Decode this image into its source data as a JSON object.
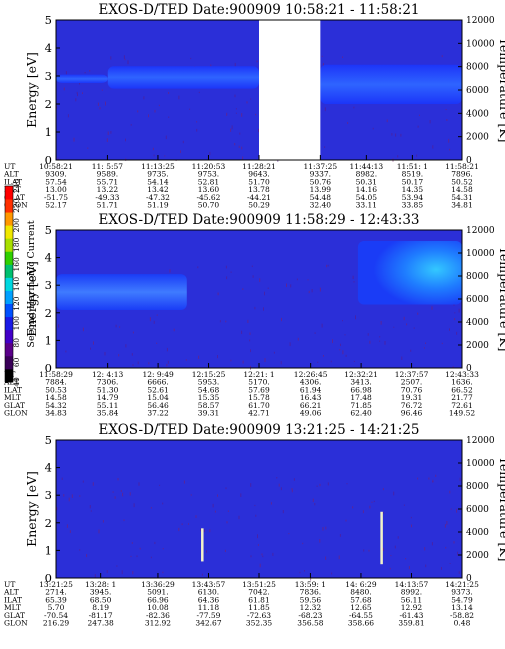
{
  "chart_data": [
    {
      "type": "heatmap",
      "title": "EXOS-D/TED   Date:900909   10:58:21 - 11:58:21",
      "ylabel": "Energy [eV]",
      "ylabel_right": "Temperature [K]",
      "ylim": [
        0,
        5
      ],
      "y_ticks": [
        0,
        1,
        2,
        3,
        4,
        5
      ],
      "ylim_right": [
        0,
        12000
      ],
      "y_ticks_right": [
        0,
        2000,
        4000,
        6000,
        8000,
        10000,
        12000
      ],
      "time_range": [
        "10:58:21",
        "11:58:21"
      ],
      "data_gap": [
        "11:28:21",
        "11:37:25"
      ],
      "spectrogram_bands": [
        {
          "from": "10:58:21",
          "to": "11:06:00",
          "energy": [
            2.75,
            3.05
          ],
          "level": "light-blue"
        },
        {
          "from": "11:06:00",
          "to": "11:28:21",
          "energy": [
            2.55,
            3.35
          ],
          "level": "light-blue"
        },
        {
          "from": "11:37:25",
          "to": "11:58:21",
          "energy": [
            2.0,
            3.4
          ],
          "level": "light-blue"
        }
      ],
      "annotation_rows": [
        {
          "label": "UT",
          "values": [
            "10:58:21",
            "11: 5:57",
            "11:13:25",
            "11:20:53",
            "11:28:21",
            "11:37:25",
            "11:44:13",
            "11:51: 1",
            "11:58:21"
          ]
        },
        {
          "label": "ALT",
          "values": [
            "9309.",
            "9589.",
            "9735.",
            "9753.",
            "9643.",
            "9337.",
            "8982.",
            "8519.",
            "7896."
          ]
        },
        {
          "label": "ILAT",
          "values": [
            "57.54",
            "55.71",
            "54.14",
            "52.81",
            "51.70",
            "50.76",
            "50.31",
            "50.17",
            "50.52"
          ]
        },
        {
          "label": "MLT",
          "values": [
            "13.00",
            "13.22",
            "13.42",
            "13.60",
            "13.78",
            "13.99",
            "14.16",
            "14.35",
            "14.58"
          ]
        },
        {
          "label": "GLAT",
          "values": [
            "-51.75",
            "-49.33",
            "-47.32",
            "-45.62",
            "-44.21",
            "54.48",
            "54.05",
            "53.94",
            "54.31"
          ]
        },
        {
          "label": "GLON",
          "values": [
            "52.17",
            "51.71",
            "51.19",
            "50.70",
            "50.29",
            "32.40",
            "33.11",
            "33.85",
            "34.81"
          ]
        }
      ]
    },
    {
      "type": "heatmap",
      "title": "EXOS-D/TED   Date:900909   11:58:29 - 12:43:33",
      "ylabel": "Energy [eV]",
      "ylabel_right": "Temperature [K]",
      "ylim": [
        0,
        5
      ],
      "y_ticks": [
        0,
        1,
        2,
        3,
        4,
        5
      ],
      "ylim_right": [
        0,
        12000
      ],
      "y_ticks_right": [
        0,
        2000,
        4000,
        6000,
        8000,
        10000,
        12000
      ],
      "time_range": [
        "11:58:29",
        "12:43:33"
      ],
      "spectrogram_bands": [
        {
          "from": "11:58:29",
          "to": "12:13:00",
          "energy": [
            2.1,
            3.4
          ],
          "level": "light-blue"
        },
        {
          "from": "12:32:00",
          "to": "12:43:33",
          "energy": [
            2.3,
            4.6
          ],
          "level": "light-blue-to-cyan"
        }
      ],
      "annotation_rows": [
        {
          "label": "UT",
          "values": [
            "11:58:29",
            "12: 4:13",
            "12: 9:49",
            "12:15:25",
            "12:21: 1",
            "12:26:45",
            "12:32:21",
            "12:37:57",
            "12:43:33"
          ]
        },
        {
          "label": "ALT",
          "values": [
            "7884.",
            "7306.",
            "6666.",
            "5953.",
            "5170.",
            "4306.",
            "3413.",
            "2507.",
            "1636."
          ]
        },
        {
          "label": "ILAT",
          "values": [
            "50.53",
            "51.30",
            "52.61",
            "54.68",
            "57.69",
            "61.94",
            "66.98",
            "70.76",
            "66.52"
          ]
        },
        {
          "label": "MLT",
          "values": [
            "14.58",
            "14.79",
            "15.04",
            "15.35",
            "15.78",
            "16.43",
            "17.48",
            "19.31",
            "21.77"
          ]
        },
        {
          "label": "GLAT",
          "values": [
            "54.32",
            "55.11",
            "56.46",
            "58.57",
            "61.70",
            "66.21",
            "71.85",
            "76.72",
            "72.61"
          ]
        },
        {
          "label": "GLON",
          "values": [
            "34.83",
            "35.84",
            "37.22",
            "39.31",
            "42.71",
            "49.06",
            "62.40",
            "96.46",
            "149.52"
          ]
        }
      ]
    },
    {
      "type": "heatmap",
      "title": "EXOS-D/TED   Date:900909   13:21:25 - 14:21:25",
      "ylabel": "Energy [eV]",
      "ylabel_right": "Temperature [K]",
      "ylim": [
        0,
        5
      ],
      "y_ticks": [
        0,
        1,
        2,
        3,
        4,
        5
      ],
      "ylim_right": [
        0,
        12000
      ],
      "y_ticks_right": [
        0,
        2000,
        4000,
        6000,
        8000,
        10000,
        12000
      ],
      "time_range": [
        "13:21:25",
        "14:21:25"
      ],
      "spectrogram_spikes": [
        {
          "time": "13:43:00",
          "energy": [
            0.6,
            1.8
          ]
        },
        {
          "time": "14:09:30",
          "energy": [
            0.5,
            2.4
          ]
        }
      ],
      "annotation_rows": [
        {
          "label": "UT",
          "values": [
            "13:21:25",
            "13:28: 1",
            "13:36:29",
            "13:43:57",
            "13:51:25",
            "13:59: 1",
            "14: 6:29",
            "14:13:57",
            "14:21:25"
          ]
        },
        {
          "label": "ALT",
          "values": [
            "2714.",
            "3945.",
            "5091.",
            "6130.",
            "7042.",
            "7836.",
            "8480.",
            "8992.",
            "9373."
          ]
        },
        {
          "label": "ILAT",
          "values": [
            "65.39",
            "68.50",
            "66.96",
            "64.36",
            "61.81",
            "59.56",
            "57.68",
            "56.11",
            "54.79"
          ]
        },
        {
          "label": "MLT",
          "values": [
            "5.70",
            "8.19",
            "10.08",
            "11.18",
            "11.85",
            "12.32",
            "12.65",
            "12.92",
            "13.14"
          ]
        },
        {
          "label": "GLAT",
          "values": [
            "-70.54",
            "-81.17",
            "-82.36",
            "-77.59",
            "-72.63",
            "-68.23",
            "-64.55",
            "-61.43",
            "-58.82"
          ]
        },
        {
          "label": "GLON",
          "values": [
            "216.29",
            "247.38",
            "312.92",
            "342.67",
            "352.35",
            "356.58",
            "358.66",
            "359.81",
            "0.48"
          ]
        }
      ]
    }
  ],
  "colorbar": {
    "label": "Second Harmonic Current",
    "tick_labels": [
      "40",
      "60",
      "80",
      "100",
      "120",
      "140",
      "160",
      "180",
      "200",
      "220",
      "240"
    ],
    "colors": [
      "#000000",
      "#3a0058",
      "#5a008a",
      "#4200c8",
      "#1a1ae6",
      "#0050ff",
      "#00a0ff",
      "#00d8e0",
      "#00c070",
      "#30d000",
      "#a8e000",
      "#f0e800",
      "#ff9800",
      "#ff3000",
      "#ff0000"
    ]
  }
}
